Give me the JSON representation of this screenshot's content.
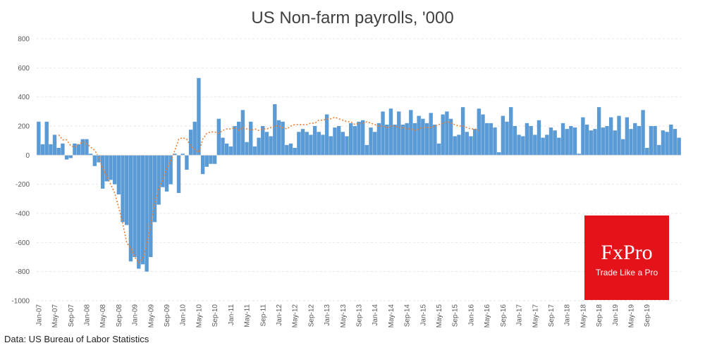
{
  "chart_data": {
    "type": "bar",
    "title": "US Non-farm payrolls, '000",
    "source": "Data: US Bureau of Labor Statistics",
    "ylim": [
      -1000,
      800
    ],
    "yticks": [
      -1000,
      -800,
      -600,
      -400,
      -200,
      0,
      200,
      400,
      600,
      800
    ],
    "grid": true,
    "start": "Jan-07",
    "x_tick_labels": [
      "Jan-07",
      "May-07",
      "Sep-07",
      "Jan-08",
      "May-08",
      "Sep-08",
      "Jan-09",
      "May-09",
      "Sep-09",
      "Jan-10",
      "May-10",
      "Sep-10",
      "Jan-11",
      "May-11",
      "Sep-11",
      "Jan-12",
      "May-12",
      "Sep-12",
      "Jan-13",
      "May-13",
      "Sep-13",
      "Jan-14",
      "May-14",
      "Sep-14",
      "Jan-15",
      "May-15",
      "Sep-15",
      "Jan-16",
      "May-16",
      "Sep-16",
      "Jan-17",
      "May-17",
      "Sep-17",
      "Jan-18",
      "May-18",
      "Sep-18",
      "Jan-19",
      "May-19",
      "Sep-19"
    ],
    "series": [
      {
        "type": "bar",
        "color": "#5b9bd5",
        "values": [
          230,
          75,
          230,
          75,
          140,
          50,
          80,
          -30,
          -20,
          80,
          75,
          110,
          110,
          10,
          -75,
          -50,
          -230,
          -180,
          -170,
          -200,
          -270,
          -460,
          -480,
          -730,
          -700,
          -780,
          -750,
          -800,
          -700,
          -460,
          -340,
          -220,
          -250,
          -200,
          10,
          -260,
          10,
          -100,
          175,
          230,
          530,
          -130,
          -80,
          -60,
          -60,
          250,
          120,
          80,
          60,
          200,
          230,
          310,
          90,
          230,
          60,
          120,
          200,
          160,
          130,
          350,
          240,
          230,
          70,
          80,
          50,
          160,
          180,
          160,
          140,
          200,
          160,
          140,
          280,
          130,
          190,
          200,
          160,
          130,
          220,
          200,
          230,
          240,
          70,
          190,
          160,
          220,
          300,
          210,
          320,
          210,
          300,
          210,
          220,
          310,
          220,
          270,
          250,
          220,
          290,
          210,
          80,
          280,
          300,
          250,
          130,
          140,
          330,
          160,
          130,
          180,
          320,
          280,
          220,
          220,
          190,
          20,
          270,
          230,
          330,
          200,
          140,
          130,
          220,
          200,
          140,
          240,
          120,
          140,
          190,
          170,
          120,
          220,
          180,
          200,
          190,
          10,
          260,
          210,
          170,
          180,
          330,
          190,
          200,
          260,
          170,
          270,
          110,
          260,
          180,
          220,
          200,
          310,
          50,
          200,
          200,
          70,
          170,
          160,
          210,
          180,
          120
        ],
        "name": ""
      },
      {
        "type": "line",
        "style": "dotted",
        "color": "#ed7d31",
        "start_index": 5,
        "values": [
          140,
          105,
          105,
          65,
          55,
          75,
          90,
          80,
          55,
          35,
          -15,
          -90,
          -140,
          -200,
          -260,
          -360,
          -470,
          -600,
          -640,
          -700,
          -740,
          -710,
          -610,
          -470,
          -330,
          -230,
          -170,
          -90,
          -40,
          30,
          110,
          120,
          110,
          60,
          40,
          20,
          110,
          150,
          160,
          160,
          150,
          170,
          180,
          180,
          190,
          170,
          190,
          180,
          170,
          180,
          170,
          180,
          180,
          190,
          200,
          200,
          190,
          180,
          200,
          210,
          210,
          210,
          210,
          220,
          220,
          240,
          240,
          250,
          250,
          260,
          250,
          240,
          230,
          230,
          210,
          220,
          220,
          230,
          220,
          210,
          200,
          200,
          190,
          200,
          200,
          190,
          190,
          180,
          180,
          170,
          180,
          190,
          190,
          190,
          200,
          210,
          220,
          230,
          220,
          210,
          200,
          200,
          190,
          180,
          180,
          170
        ],
        "name": ""
      }
    ]
  },
  "logo": {
    "brand": "FxPro",
    "tagline": "Trade Like a Pro"
  }
}
